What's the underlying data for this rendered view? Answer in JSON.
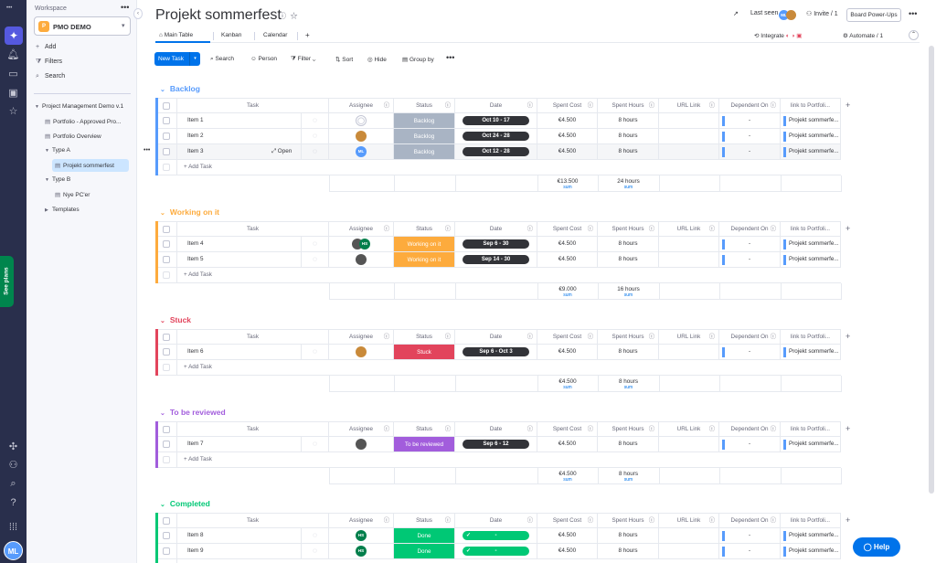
{
  "workspace": {
    "label": "Workspace",
    "name": "PMO DEMO",
    "badge": "P",
    "actions": [
      {
        "icon": "plus-icon",
        "glyph": "+",
        "label": "Add"
      },
      {
        "icon": "filter-icon",
        "glyph": "⧩",
        "label": "Filters"
      },
      {
        "icon": "search-icon",
        "glyph": "⌕",
        "label": "Search"
      }
    ],
    "tree": [
      {
        "label": "Project Management Demo v.1",
        "arrow": "▼",
        "icon": "",
        "indent": 0
      },
      {
        "label": "Portfolio - Approved Pro...",
        "arrow": "",
        "icon": "▤",
        "indent": 1
      },
      {
        "label": "Portfolio Overview",
        "arrow": "",
        "icon": "▤",
        "indent": 1
      },
      {
        "label": "Type A",
        "arrow": "▼",
        "icon": "",
        "indent": 1
      },
      {
        "label": "Projekt sommerfest",
        "arrow": "",
        "icon": "▤",
        "indent": 2,
        "selected": true
      },
      {
        "label": "Type B",
        "arrow": "▼",
        "icon": "",
        "indent": 1
      },
      {
        "label": "Nye PC'er",
        "arrow": "",
        "icon": "▤",
        "indent": 2
      },
      {
        "label": "Templates",
        "arrow": "▶",
        "icon": "",
        "indent": 1
      }
    ]
  },
  "rail": {
    "see_plans": "See plans",
    "user_initials": "ML"
  },
  "header": {
    "title": "Projekt sommerfest",
    "last_seen": "Last seen",
    "invite": "Invite / 1",
    "board_powerups": "Board Power-Ups",
    "integrate": "Integrate",
    "automate": "Automate / 1",
    "tabs": [
      "Main Table",
      "Kanban",
      "Calendar",
      "+"
    ]
  },
  "toolbar": {
    "new_task": "New Task",
    "search": "Search",
    "person": "Person",
    "filter": "Filter",
    "sort": "Sort",
    "hide": "Hide",
    "group_by": "Group by"
  },
  "columns": [
    "Task",
    "Assignee",
    "Status",
    "Date",
    "Spent Cost",
    "Spent Hours",
    "URL Link",
    "Dependent On",
    "link to Portfoli..."
  ],
  "add_task": "+ Add Task",
  "open_label": "Open",
  "sum_label": "sum",
  "groups": [
    {
      "title": "Backlog",
      "color": "#579bfc",
      "rows": [
        {
          "task": "Item 1",
          "assignees": [
            {
              "kind": "empty"
            }
          ],
          "status": "Backlog",
          "status_color": "#a9b4c4",
          "date": "Oct 10 - 17",
          "date_done": false,
          "cost": "€4.500",
          "hours": "8 hours",
          "dependent": "-",
          "link": "Projekt sommerfe..."
        },
        {
          "task": "Item 2",
          "assignees": [
            {
              "kind": "photo",
              "color": "#c98a3a"
            }
          ],
          "status": "Backlog",
          "status_color": "#a9b4c4",
          "date": "Oct 24 - 28",
          "date_done": false,
          "cost": "€4.500",
          "hours": "8 hours",
          "dependent": "-",
          "link": "Projekt sommerfe..."
        },
        {
          "task": "Item 3",
          "assignees": [
            {
              "kind": "initials",
              "text": "ML",
              "color": "#579bfc"
            }
          ],
          "status": "Backlog",
          "status_color": "#a9b4c4",
          "date": "Oct 12 - 28",
          "date_done": false,
          "cost": "€4.500",
          "hours": "8 hours",
          "dependent": "-",
          "link": "Projekt sommerfe...",
          "hover": true
        }
      ],
      "sum_cost": "€13.500",
      "sum_hours": "24 hours"
    },
    {
      "title": "Working on it",
      "color": "#fdab3d",
      "rows": [
        {
          "task": "Item 4",
          "assignees": [
            {
              "kind": "photo",
              "color": "#555"
            },
            {
              "kind": "initials",
              "text": "HS",
              "color": "#037f4c"
            }
          ],
          "status": "Working on it",
          "status_color": "#fdab3d",
          "date": "Sep 6 - 30",
          "date_done": false,
          "cost": "€4.500",
          "hours": "8 hours",
          "dependent": "-",
          "link": "Projekt sommerfe..."
        },
        {
          "task": "Item 5",
          "assignees": [
            {
              "kind": "photo",
              "color": "#555"
            }
          ],
          "status": "Working on it",
          "status_color": "#fdab3d",
          "date": "Sep 14 - 30",
          "date_done": false,
          "cost": "€4.500",
          "hours": "8 hours",
          "dependent": "-",
          "link": "Projekt sommerfe..."
        }
      ],
      "sum_cost": "€9.000",
      "sum_hours": "16 hours"
    },
    {
      "title": "Stuck",
      "color": "#e2445c",
      "rows": [
        {
          "task": "Item 6",
          "assignees": [
            {
              "kind": "photo",
              "color": "#c98a3a"
            }
          ],
          "status": "Stuck",
          "status_color": "#e2445c",
          "date": "Sep 6 - Oct 3",
          "date_done": false,
          "cost": "€4.500",
          "hours": "8 hours",
          "dependent": "-",
          "link": "Projekt sommerfe..."
        }
      ],
      "sum_cost": "€4.500",
      "sum_hours": "8 hours"
    },
    {
      "title": "To be reviewed",
      "color": "#a25ddc",
      "rows": [
        {
          "task": "Item 7",
          "assignees": [
            {
              "kind": "photo",
              "color": "#555"
            }
          ],
          "status": "To be reviewed",
          "status_color": "#a25ddc",
          "date": "Sep 6 - 12",
          "date_done": false,
          "cost": "€4.500",
          "hours": "8 hours",
          "dependent": "-",
          "link": "Projekt sommerfe..."
        }
      ],
      "sum_cost": "€4.500",
      "sum_hours": "8 hours"
    },
    {
      "title": "Completed",
      "color": "#00c875",
      "rows": [
        {
          "task": "Item 8",
          "assignees": [
            {
              "kind": "initials",
              "text": "HS",
              "color": "#037f4c"
            }
          ],
          "status": "Done",
          "status_color": "#00c875",
          "date": "-",
          "date_done": true,
          "cost": "€4.500",
          "hours": "8 hours",
          "dependent": "-",
          "link": "Projekt sommerfe..."
        },
        {
          "task": "Item 9",
          "assignees": [
            {
              "kind": "initials",
              "text": "HS",
              "color": "#037f4c"
            }
          ],
          "status": "Done",
          "status_color": "#00c875",
          "date": "-",
          "date_done": true,
          "cost": "€4.500",
          "hours": "8 hours",
          "dependent": "-",
          "link": "Projekt sommerfe..."
        }
      ]
    }
  ],
  "help": "Help"
}
